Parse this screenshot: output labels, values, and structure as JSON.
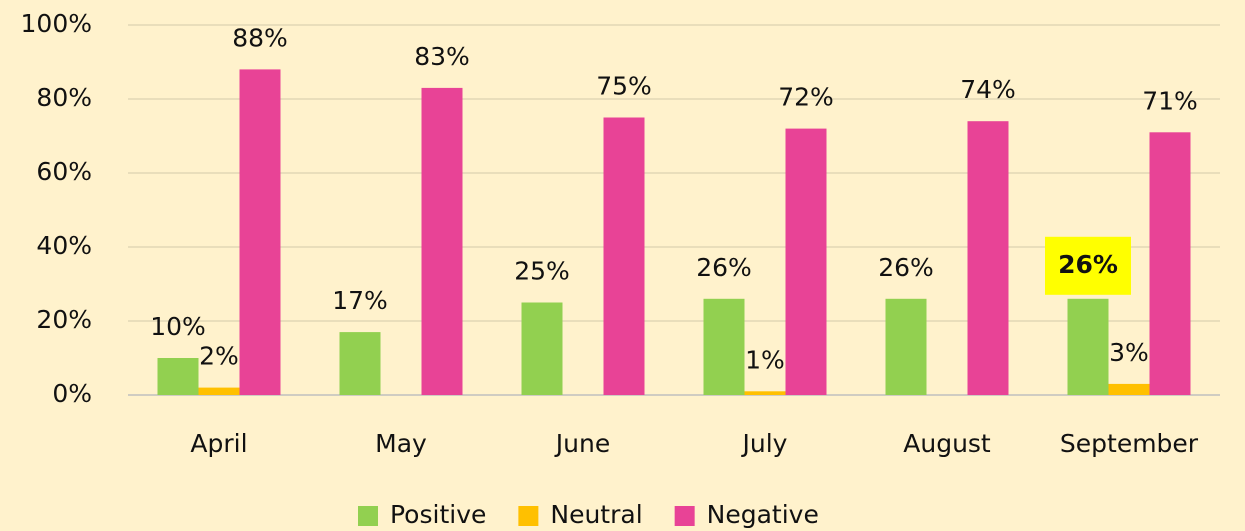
{
  "chart_data": {
    "type": "bar",
    "categories": [
      "April",
      "May",
      "June",
      "July",
      "August",
      "September"
    ],
    "series": [
      {
        "name": "Positive",
        "color": "#92d050",
        "values": [
          10,
          17,
          25,
          26,
          26,
          26
        ],
        "value_labels": [
          "10%",
          "17%",
          "25%",
          "26%",
          "26%",
          "26%"
        ]
      },
      {
        "name": "Neutral",
        "color": "#ffc000",
        "values": [
          2,
          null,
          null,
          1,
          null,
          3
        ],
        "value_labels": [
          "2%",
          null,
          null,
          "1%",
          null,
          "3%"
        ]
      },
      {
        "name": "Negative",
        "color": "#e84396",
        "values": [
          88,
          83,
          75,
          72,
          74,
          71
        ],
        "value_labels": [
          "88%",
          "83%",
          "75%",
          "72%",
          "74%",
          "71%"
        ]
      }
    ],
    "ylim": [
      0,
      100
    ],
    "yticks": [
      {
        "value": 0,
        "label": "0%"
      },
      {
        "value": 20,
        "label": "20%"
      },
      {
        "value": 40,
        "label": "40%"
      },
      {
        "value": 60,
        "label": "60%"
      },
      {
        "value": 80,
        "label": "80%"
      },
      {
        "value": 100,
        "label": "100%"
      }
    ],
    "grid": true,
    "legend": "bottom",
    "highlight": {
      "series": 0,
      "index": 5,
      "color": "#ffff00"
    }
  }
}
